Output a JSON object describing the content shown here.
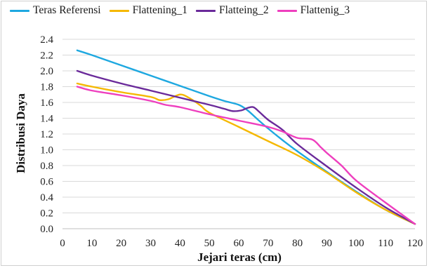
{
  "chart_data": {
    "type": "line",
    "title": "",
    "xlabel": "Jejari teras (cm)",
    "ylabel": "Distribusi Daya",
    "xlim": [
      0,
      120
    ],
    "ylim": [
      0,
      2.4
    ],
    "x_ticks": [
      "0",
      "10",
      "20",
      "30",
      "40",
      "50",
      "60",
      "70",
      "80",
      "90",
      "100",
      "110",
      "120"
    ],
    "y_ticks": [
      "0.0",
      "0.2",
      "0.4",
      "0.6",
      "0.8",
      "1.0",
      "1.2",
      "1.4",
      "1.6",
      "1.8",
      "2.0",
      "2.2",
      "2.4"
    ],
    "grid": true,
    "legend_position": "top",
    "series": [
      {
        "name": "Teras Referensi",
        "color": "#1ea8e0",
        "x": [
          5,
          10,
          20,
          30,
          40,
          50,
          55,
          60,
          63,
          66,
          70,
          75,
          80,
          90,
          100,
          110,
          120
        ],
        "y": [
          2.26,
          2.2,
          2.07,
          1.94,
          1.81,
          1.68,
          1.62,
          1.57,
          1.5,
          1.4,
          1.27,
          1.12,
          0.98,
          0.72,
          0.47,
          0.24,
          0.06
        ]
      },
      {
        "name": "Flattening_1",
        "color": "#f5b800",
        "x": [
          5,
          10,
          20,
          30,
          33,
          36,
          40,
          43,
          47,
          50,
          60,
          70,
          80,
          90,
          100,
          110,
          120
        ],
        "y": [
          1.84,
          1.8,
          1.73,
          1.67,
          1.63,
          1.64,
          1.7,
          1.66,
          1.56,
          1.47,
          1.29,
          1.11,
          0.93,
          0.71,
          0.46,
          0.24,
          0.06
        ]
      },
      {
        "name": "Flatteing_2",
        "color": "#6a2a9a",
        "x": [
          5,
          10,
          20,
          30,
          40,
          50,
          55,
          58,
          61,
          63,
          65,
          67,
          70,
          75,
          80,
          90,
          100,
          110,
          120
        ],
        "y": [
          2.0,
          1.94,
          1.84,
          1.75,
          1.66,
          1.57,
          1.52,
          1.49,
          1.5,
          1.53,
          1.54,
          1.48,
          1.38,
          1.25,
          1.07,
          0.79,
          0.52,
          0.27,
          0.06
        ]
      },
      {
        "name": "Flattenig_3",
        "color": "#ee3fbe",
        "x": [
          5,
          10,
          20,
          30,
          35,
          40,
          50,
          60,
          70,
          75,
          80,
          85,
          88,
          90,
          95,
          100,
          110,
          120
        ],
        "y": [
          1.8,
          1.75,
          1.69,
          1.62,
          1.57,
          1.54,
          1.45,
          1.37,
          1.29,
          1.23,
          1.15,
          1.13,
          1.03,
          0.96,
          0.8,
          0.61,
          0.33,
          0.06
        ]
      }
    ]
  }
}
